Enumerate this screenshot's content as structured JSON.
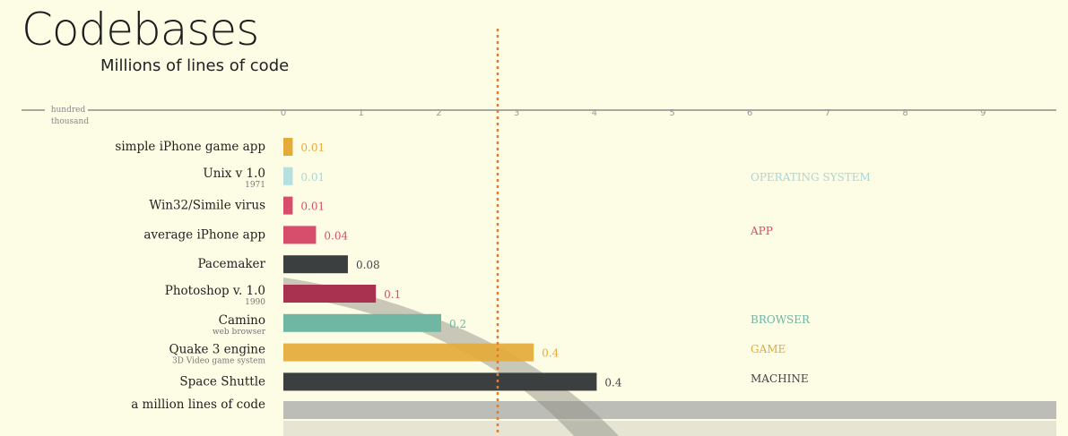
{
  "title": "Codebases",
  "subtitle": "Millions of lines of code",
  "axis_note": [
    "hundred",
    "thousand"
  ],
  "chart_data": {
    "type": "bar",
    "title": "Codebases",
    "subtitle": "Millions of lines of code",
    "x_ticks": [
      "0",
      "1",
      "2",
      "3",
      "4",
      "5",
      "6",
      "7",
      "8",
      "9"
    ],
    "xlim": [
      0,
      10
    ],
    "reference_line": "dotted vertical line",
    "bars": [
      {
        "label": "simple iPhone game app",
        "sub": "",
        "value_label": "0.01",
        "category": "GAME"
      },
      {
        "label": "Unix v 1.0",
        "sub": "1971",
        "value_label": "0.01",
        "category": "OPERATING SYSTEM"
      },
      {
        "label": "Win32/Simile virus",
        "sub": "",
        "value_label": "0.01",
        "category": "APP"
      },
      {
        "label": "average iPhone app",
        "sub": "",
        "value_label": "0.04",
        "category": "APP"
      },
      {
        "label": "Pacemaker",
        "sub": "",
        "value_label": "0.08",
        "category": "MACHINE"
      },
      {
        "label": "Photoshop v. 1.0",
        "sub": "1990",
        "value_label": "0.1",
        "category": "APP"
      },
      {
        "label": "Camino",
        "sub": "web browser",
        "value_label": "0.2",
        "category": "BROWSER"
      },
      {
        "label": "Quake 3 engine",
        "sub": "3D Video game system",
        "value_label": "0.4",
        "category": "GAME"
      },
      {
        "label": "Space Shuttle",
        "sub": "",
        "value_label": "0.4",
        "category": "MACHINE"
      }
    ],
    "bar_lengths_axis_units": [
      0.12,
      0.12,
      0.12,
      0.42,
      0.83,
      1.19,
      2.03,
      3.22,
      4.03
    ],
    "million_row": {
      "label": "a million lines of code"
    },
    "legend": [
      {
        "name": "OPERATING SYSTEM",
        "color": "#b5dfe0"
      },
      {
        "name": "APP",
        "color": "#d64e6c"
      },
      {
        "name": "BROWSER",
        "color": "#6fb6a3"
      },
      {
        "name": "GAME",
        "color": "#e4ab39"
      },
      {
        "name": "MACHINE",
        "color": "#3c3f3f"
      }
    ],
    "legend_placement": "right",
    "category_colors": {
      "OPERATING SYSTEM": "#b5dfe0",
      "APP": "#d64e6c",
      "BROWSER": "#6fb6a3",
      "GAME": "#e4ab39",
      "MACHINE": "#3c3f3f"
    },
    "category_text_colors": {
      "OPERATING SYSTEM": "#a8d7d8",
      "APP": "#d64e6c",
      "BROWSER": "#6fb6a3",
      "GAME": "#e4ab39",
      "MACHINE": "#444444"
    },
    "bar_overrides": {
      "Photoshop v. 1.0": "#a8324f"
    }
  }
}
